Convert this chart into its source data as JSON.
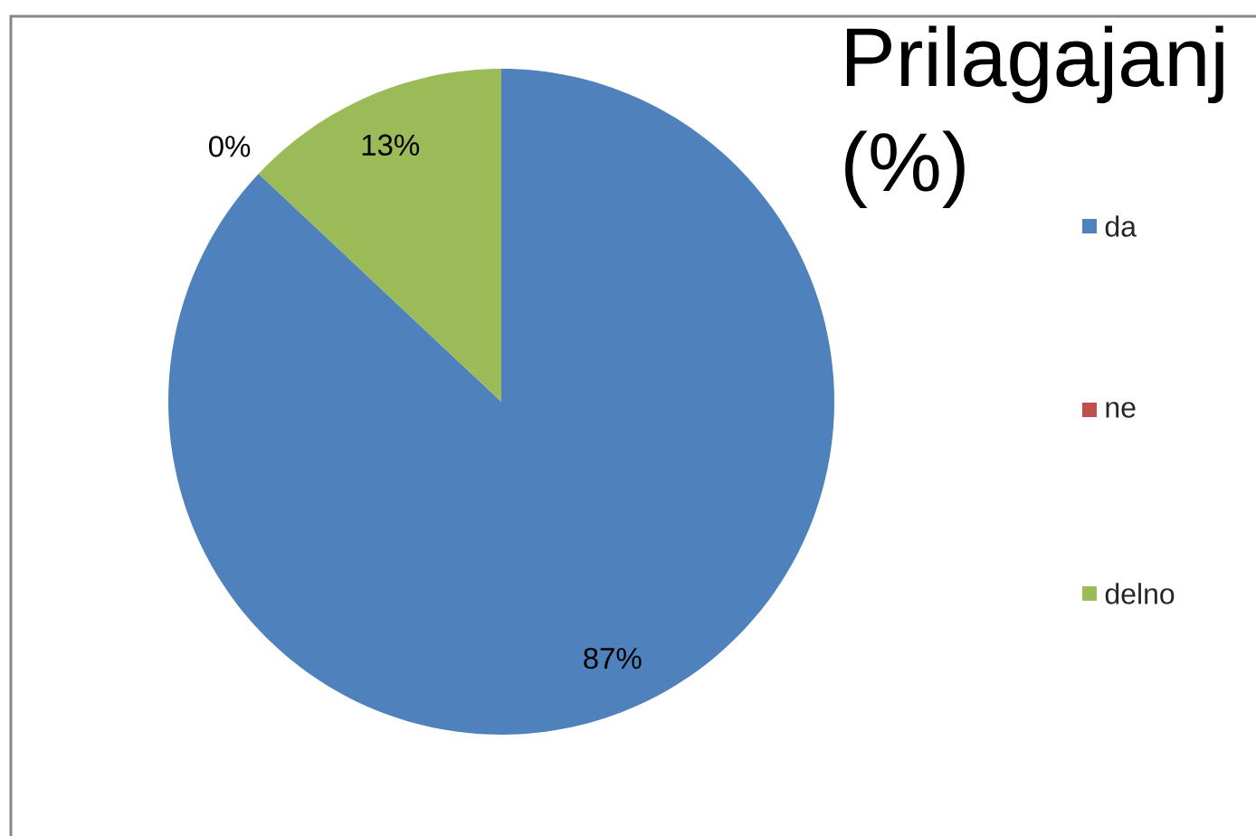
{
  "chart_data": {
    "type": "pie",
    "title": "Prilagajanj (%)",
    "categories": [
      "da",
      "ne",
      "delno"
    ],
    "values": [
      87,
      0,
      13
    ],
    "colors": [
      "#4f81bd",
      "#c0504d",
      "#9bbb59"
    ],
    "value_labels": [
      "87%",
      "0%",
      "13%"
    ],
    "legend": "right"
  }
}
